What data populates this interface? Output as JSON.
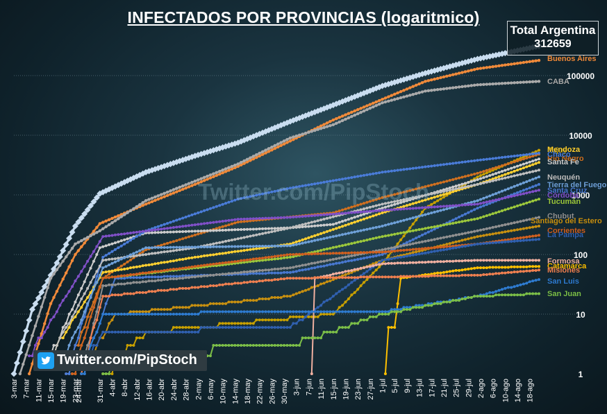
{
  "title": "INFECTADOS POR PROVINCIAS (logaritmico)",
  "total_box": {
    "label": "Total Argentina",
    "value": "312659"
  },
  "watermark": "Twitter.com/PipStoch",
  "twitter_badge": {
    "icon": "twitter-bird-icon",
    "text": "Twitter.com/PipStoch"
  },
  "chart_data": {
    "type": "line",
    "title": "INFECTADOS POR PROVINCIAS (logaritmico)",
    "y_scale": "log",
    "ylim": [
      1,
      312659
    ],
    "y_ticks": [
      "1",
      "10",
      "100",
      "1000",
      "10000",
      "100000"
    ],
    "x_start": "3-mar",
    "x_end": "21-ago",
    "x_tick_labels": [
      "3-mar",
      "7-mar",
      "11-mar",
      "15-mar",
      "19-mar",
      "23-mar",
      "24-mar",
      "31-mar",
      "4-abr",
      "8-abr",
      "12-abr",
      "16-abr",
      "20-abr",
      "24-abr",
      "28-abr",
      "2-may",
      "6-may",
      "10-may",
      "14-may",
      "18-may",
      "22-may",
      "26-may",
      "30-may",
      "3-jun",
      "7-jun",
      "11-jun",
      "15-jun",
      "19-jun",
      "23-jun",
      "27-jun",
      "1-jul",
      "5-jul",
      "9-jul",
      "13-jul",
      "17-jul",
      "21-jul",
      "25-jul",
      "29-jul",
      "2-ago",
      "6-ago",
      "10-ago",
      "14-ago",
      "18-ago"
    ],
    "grid": true,
    "legend": "labels at right end of lines",
    "series": [
      {
        "name": "Total Argentina",
        "color": "#c9ddf0",
        "points": [
          [
            "3-mar",
            1
          ],
          [
            "9-mar",
            12
          ],
          [
            "15-mar",
            45
          ],
          [
            "23-mar",
            300
          ],
          [
            "31-mar",
            1050
          ],
          [
            "15-abr",
            2400
          ],
          [
            "1-may",
            4500
          ],
          [
            "15-may",
            7500
          ],
          [
            "1-jun",
            17000
          ],
          [
            "15-jun",
            32000
          ],
          [
            "1-jul",
            67000
          ],
          [
            "15-jul",
            110000
          ],
          [
            "1-ago",
            190000
          ],
          [
            "21-ago",
            312659
          ]
        ]
      },
      {
        "name": "Buenos Aires",
        "color": "#f08a3a",
        "points": [
          [
            "8-mar",
            1
          ],
          [
            "15-mar",
            15
          ],
          [
            "23-mar",
            100
          ],
          [
            "31-mar",
            330
          ],
          [
            "15-abr",
            700
          ],
          [
            "1-may",
            1500
          ],
          [
            "15-may",
            3000
          ],
          [
            "1-jun",
            8000
          ],
          [
            "15-jun",
            18000
          ],
          [
            "1-jul",
            40000
          ],
          [
            "15-jul",
            80000
          ],
          [
            "1-ago",
            130000
          ],
          [
            "21-ago",
            180000
          ]
        ]
      },
      {
        "name": "CABA",
        "color": "#aaaaaa",
        "points": [
          [
            "5-mar",
            1
          ],
          [
            "15-mar",
            40
          ],
          [
            "23-mar",
            150
          ],
          [
            "31-mar",
            250
          ],
          [
            "15-abr",
            800
          ],
          [
            "1-may",
            1700
          ],
          [
            "15-may",
            3300
          ],
          [
            "1-jun",
            9000
          ],
          [
            "15-jun",
            15000
          ],
          [
            "1-jul",
            35000
          ],
          [
            "15-jul",
            55000
          ],
          [
            "1-ago",
            70000
          ],
          [
            "21-ago",
            80000
          ]
        ]
      },
      {
        "name": "Jujuy",
        "color": "#c8a000",
        "points": [
          [
            "1-abr",
            1
          ],
          [
            "15-abr",
            5
          ],
          [
            "15-jun",
            10
          ],
          [
            "1-jul",
            70
          ],
          [
            "15-jul",
            600
          ],
          [
            "1-ago",
            2000
          ],
          [
            "21-ago",
            5600
          ]
        ]
      },
      {
        "name": "Río Negro",
        "color": "#d07020",
        "points": [
          [
            "20-mar",
            1
          ],
          [
            "1-abr",
            40
          ],
          [
            "15-abr",
            120
          ],
          [
            "15-may",
            350
          ],
          [
            "15-jun",
            500
          ],
          [
            "1-jul",
            900
          ],
          [
            "1-ago",
            2300
          ],
          [
            "21-ago",
            4800
          ]
        ]
      },
      {
        "name": "Santa Fe",
        "color": "#cccccc",
        "points": [
          [
            "15-mar",
            2
          ],
          [
            "31-mar",
            130
          ],
          [
            "15-abr",
            230
          ],
          [
            "1-jun",
            280
          ],
          [
            "15-jun",
            320
          ],
          [
            "1-jul",
            600
          ],
          [
            "1-ago",
            1800
          ],
          [
            "21-ago",
            4000
          ]
        ]
      },
      {
        "name": "Chaco",
        "color": "#4a7cd8",
        "points": [
          [
            "20-mar",
            1
          ],
          [
            "1-abr",
            90
          ],
          [
            "15-abr",
            250
          ],
          [
            "15-may",
            850
          ],
          [
            "1-jun",
            1300
          ],
          [
            "1-jul",
            2400
          ],
          [
            "1-ago",
            3800
          ],
          [
            "21-ago",
            5000
          ]
        ]
      },
      {
        "name": "Mendoza",
        "color": "#ffd030",
        "points": [
          [
            "15-mar",
            2
          ],
          [
            "1-abr",
            50
          ],
          [
            "1-may",
            90
          ],
          [
            "1-jun",
            150
          ],
          [
            "1-jul",
            500
          ],
          [
            "1-ago",
            1500
          ],
          [
            "21-ago",
            3500
          ]
        ]
      },
      {
        "name": "Neuquén",
        "color": "#bfbfbf",
        "points": [
          [
            "15-mar",
            2
          ],
          [
            "1-abr",
            80
          ],
          [
            "1-may",
            130
          ],
          [
            "1-jun",
            280
          ],
          [
            "1-jul",
            700
          ],
          [
            "1-ago",
            1500
          ],
          [
            "21-ago",
            2600
          ]
        ]
      },
      {
        "name": "Tierra del Fuego",
        "color": "#6ea0d8",
        "points": [
          [
            "20-mar",
            2
          ],
          [
            "1-abr",
            60
          ],
          [
            "15-abr",
            130
          ],
          [
            "1-jun",
            140
          ],
          [
            "1-jul",
            300
          ],
          [
            "1-ago",
            800
          ],
          [
            "21-ago",
            2000
          ]
        ]
      },
      {
        "name": "Santa Cruz",
        "color": "#4878d0",
        "points": [
          [
            "25-mar",
            1
          ],
          [
            "5-abr",
            40
          ],
          [
            "1-jun",
            50
          ],
          [
            "1-jul",
            100
          ],
          [
            "1-ago",
            600
          ],
          [
            "21-ago",
            1500
          ]
        ]
      },
      {
        "name": "Córdoba",
        "color": "#8050c8",
        "points": [
          [
            "8-mar",
            2
          ],
          [
            "1-abr",
            200
          ],
          [
            "15-may",
            390
          ],
          [
            "1-jun",
            420
          ],
          [
            "1-jul",
            550
          ],
          [
            "1-ago",
            700
          ],
          [
            "21-ago",
            1200
          ]
        ]
      },
      {
        "name": "Tucumán",
        "color": "#9cc83c",
        "points": [
          [
            "22-mar",
            1
          ],
          [
            "1-abr",
            40
          ],
          [
            "1-jun",
            90
          ],
          [
            "1-jul",
            200
          ],
          [
            "1-ago",
            400
          ],
          [
            "21-ago",
            850
          ]
        ]
      },
      {
        "name": "Chubut",
        "color": "#909090",
        "points": [
          [
            "25-mar",
            1
          ],
          [
            "1-abr",
            30
          ],
          [
            "1-jun",
            60
          ],
          [
            "1-jul",
            120
          ],
          [
            "1-ago",
            250
          ],
          [
            "21-ago",
            420
          ]
        ]
      },
      {
        "name": "Santiago del Estero",
        "color": "#c89010",
        "points": [
          [
            "25-mar",
            1
          ],
          [
            "5-abr",
            10
          ],
          [
            "1-jun",
            20
          ],
          [
            "1-jul",
            80
          ],
          [
            "1-ago",
            200
          ],
          [
            "21-ago",
            300
          ]
        ]
      },
      {
        "name": "Corrientes",
        "color": "#d06020",
        "points": [
          [
            "22-mar",
            1
          ],
          [
            "1-abr",
            40
          ],
          [
            "1-jun",
            100
          ],
          [
            "1-jul",
            110
          ],
          [
            "1-ago",
            150
          ],
          [
            "21-ago",
            210
          ]
        ]
      },
      {
        "name": "La Pampa",
        "color": "#3060b0",
        "points": [
          [
            "25-mar",
            1
          ],
          [
            "1-abr",
            5
          ],
          [
            "1-jun",
            6
          ],
          [
            "1-jul",
            80
          ],
          [
            "1-ago",
            150
          ],
          [
            "21-ago",
            180
          ]
        ]
      },
      {
        "name": "Formosa",
        "color": "#f0b0a0",
        "points": [
          [
            "8-jun",
            1
          ],
          [
            "9-jun",
            40
          ],
          [
            "1-jul",
            70
          ],
          [
            "1-ago",
            80
          ],
          [
            "21-ago",
            80
          ]
        ]
      },
      {
        "name": "Catamarca",
        "color": "#ffc000",
        "points": [
          [
            "2-jul",
            1
          ],
          [
            "3-jul",
            6
          ],
          [
            "5-jul",
            6
          ],
          [
            "7-jul",
            40
          ],
          [
            "1-ago",
            60
          ],
          [
            "21-ago",
            63
          ]
        ]
      },
      {
        "name": "Misiones",
        "color": "#f08050",
        "points": [
          [
            "25-mar",
            1
          ],
          [
            "1-abr",
            20
          ],
          [
            "1-jun",
            40
          ],
          [
            "1-jul",
            42
          ],
          [
            "1-ago",
            45
          ],
          [
            "21-ago",
            55
          ]
        ]
      },
      {
        "name": "San Luis",
        "color": "#2e7bd0",
        "points": [
          [
            "25-mar",
            1
          ],
          [
            "1-abr",
            10
          ],
          [
            "1-jun",
            11
          ],
          [
            "1-jul",
            11
          ],
          [
            "1-ago",
            20
          ],
          [
            "21-ago",
            38
          ]
        ]
      },
      {
        "name": "San Juan",
        "color": "#7cbf48",
        "points": [
          [
            "1-abr",
            1
          ],
          [
            "5-abr",
            2
          ],
          [
            "1-jun",
            3
          ],
          [
            "1-jul",
            10
          ],
          [
            "1-ago",
            20
          ],
          [
            "21-ago",
            22
          ]
        ]
      }
    ],
    "end_labels": [
      "Buenos Aires",
      "CABA",
      "Jujuy",
      "Río Negro",
      "Santa Fe",
      "Chaco",
      "Mendoza",
      "Neuquén",
      "Tierra del Fuego",
      "Santa Cruz",
      "Córdoba",
      "Tucumán",
      "Chubut",
      "Santiago del Estero",
      "Corrientes",
      "La Pampa",
      "Formosa",
      "Catamarca",
      "Misiones",
      "San Luis",
      "San Juan"
    ]
  }
}
